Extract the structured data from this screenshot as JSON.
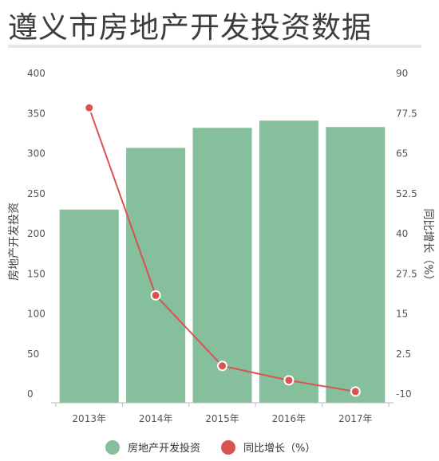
{
  "title": "遵义市房地产开发投资数据",
  "colors": {
    "bar": "#86bf9c",
    "line": "#d9534f",
    "axis": "#bbbbbb",
    "text": "#555555"
  },
  "chart_data": {
    "type": "bar",
    "title": "遵义市房地产开发投资数据",
    "categories": [
      "2013年",
      "2014年",
      "2015年",
      "2016年",
      "2017年"
    ],
    "series": [
      {
        "name": "房地产开发投资",
        "type": "bar",
        "axis": "left",
        "values": [
          241,
          318,
          343,
          352,
          344
        ]
      },
      {
        "name": "同比增长（%）",
        "type": "line",
        "axis": "right",
        "values": [
          82,
          23.5,
          1.5,
          -3,
          -6.5
        ]
      }
    ],
    "y_left": {
      "label": "房地产开发投资",
      "ylim": [
        0,
        400
      ],
      "ticks": [
        "0",
        "50",
        "100",
        "150",
        "200",
        "250",
        "300",
        "350",
        "400"
      ]
    },
    "y_right": {
      "label": "同比增长（%）",
      "ylim": [
        -10,
        90
      ],
      "ticks": [
        "-10",
        "2.5",
        "15",
        "27.5",
        "40",
        "52.5",
        "65",
        "77.5",
        "90"
      ]
    },
    "grid": false,
    "legend": "bottom"
  }
}
